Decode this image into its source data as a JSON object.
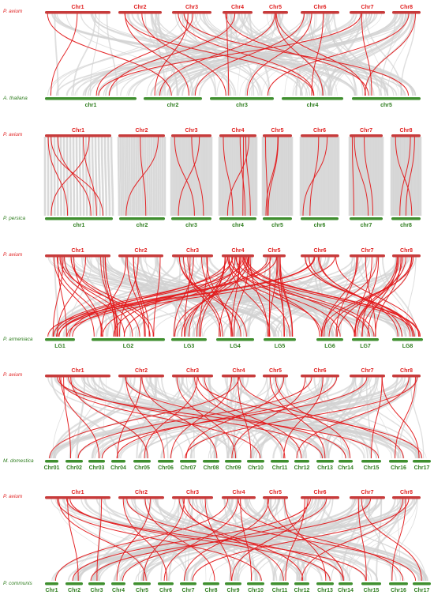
{
  "colors": {
    "top_species": "#e01e1e",
    "top_bar": "#c73b3b",
    "bottom_bar": "#3f8f2f",
    "bottom_text": "#2e7d1e",
    "synteny_background": "#d2d2d2",
    "synteny_highlight": "#e31a1c"
  },
  "panels": [
    {
      "top_species": "P. avium",
      "bottom_species": "A. thaliana",
      "top_chromosomes": [
        "Chr1",
        "Chr2",
        "Chr3",
        "Chr4",
        "Chr5",
        "Chr6",
        "Chr7",
        "Chr8"
      ],
      "bottom_chromosomes": [
        "chr1",
        "chr2",
        "chr3",
        "chr4",
        "chr5"
      ]
    },
    {
      "top_species": "P. avium",
      "bottom_species": "P. persica",
      "top_chromosomes": [
        "Chr1",
        "Chr2",
        "Chr3",
        "Chr4",
        "Chr5",
        "Chr6",
        "Chr7",
        "Chr8"
      ],
      "bottom_chromosomes": [
        "chr1",
        "chr2",
        "chr3",
        "chr4",
        "chr5",
        "chr6",
        "chr7",
        "chr8"
      ]
    },
    {
      "top_species": "P. avium",
      "bottom_species": "P. armeniaca",
      "top_chromosomes": [
        "Chr1",
        "Chr2",
        "Chr3",
        "Chr4",
        "Chr5",
        "Chr6",
        "Chr7",
        "Chr8"
      ],
      "bottom_chromosomes": [
        "LG1",
        "LG2",
        "LG3",
        "LG4",
        "LG5",
        "LG6",
        "LG7",
        "LG8"
      ]
    },
    {
      "top_species": "P. avium",
      "bottom_species": "M. domestica",
      "top_chromosomes": [
        "Chr1",
        "Chr2",
        "Chr3",
        "Chr4",
        "Chr5",
        "Chr6",
        "Chr7",
        "Chr8"
      ],
      "bottom_chromosomes": [
        "Chr01",
        "Chr02",
        "Chr03",
        "Chr04",
        "Chr05",
        "Chr06",
        "Chr07",
        "Chr08",
        "Chr09",
        "Chr10",
        "Chr11",
        "Chr12",
        "Chr13",
        "Chr14",
        "Chr15",
        "Chr16",
        "Chr17"
      ]
    },
    {
      "top_species": "P. avium",
      "bottom_species": "P. communis",
      "top_chromosomes": [
        "Chr1",
        "Chr2",
        "Chr3",
        "Chr4",
        "Chr5",
        "Chr6",
        "Chr7",
        "Chr8"
      ],
      "bottom_chromosomes": [
        "Chr1",
        "Chr2",
        "Chr3",
        "Chr4",
        "Chr5",
        "Chr6",
        "Chr7",
        "Chr8",
        "Chr9",
        "Chr10",
        "Chr11",
        "Chr12",
        "Chr13",
        "Chr14",
        "Chr15",
        "Chr16",
        "Chr17"
      ]
    }
  ]
}
